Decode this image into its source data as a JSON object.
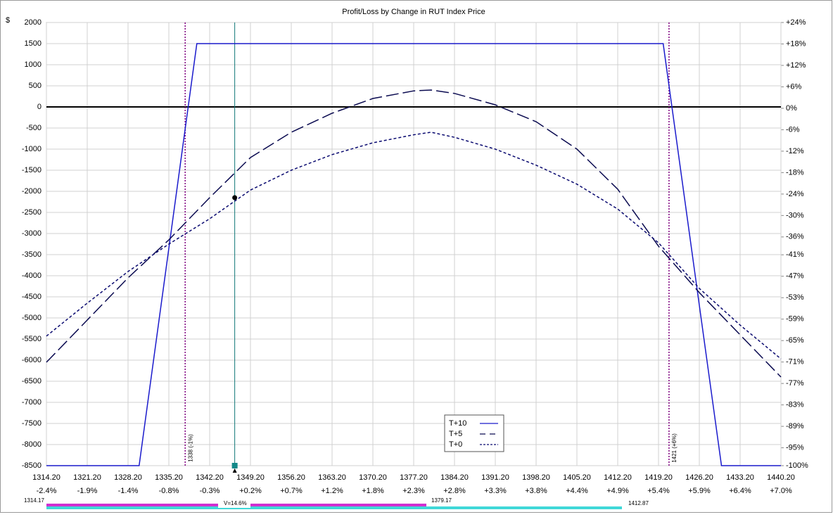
{
  "chart_data": {
    "type": "line",
    "title": "Profit/Loss by Change in RUT Index Price",
    "y_unit": "$",
    "xlim": [
      1314.2,
      1440.2
    ],
    "xticks": [
      {
        "value": 1314.2,
        "label": "1314.20"
      },
      {
        "value": 1321.2,
        "label": "1321.20"
      },
      {
        "value": 1328.2,
        "label": "1328.20"
      },
      {
        "value": 1335.2,
        "label": "1335.20"
      },
      {
        "value": 1342.2,
        "label": "1342.20"
      },
      {
        "value": 1349.2,
        "label": "1349.20"
      },
      {
        "value": 1356.2,
        "label": "1356.20"
      },
      {
        "value": 1363.2,
        "label": "1363.20"
      },
      {
        "value": 1370.2,
        "label": "1370.20"
      },
      {
        "value": 1377.2,
        "label": "1377.20"
      },
      {
        "value": 1384.2,
        "label": "1384.20"
      },
      {
        "value": 1391.2,
        "label": "1391.20"
      },
      {
        "value": 1398.2,
        "label": "1398.20"
      },
      {
        "value": 1405.2,
        "label": "1405.20"
      },
      {
        "value": 1412.2,
        "label": "1412.20"
      },
      {
        "value": 1419.2,
        "label": "1419.20"
      },
      {
        "value": 1426.2,
        "label": "1426.20"
      },
      {
        "value": 1433.2,
        "label": "1433.20"
      },
      {
        "value": 1440.2,
        "label": "1440.20"
      }
    ],
    "x_pct_labels": [
      "-2.4%",
      "-1.9%",
      "-1.4%",
      "-0.8%",
      "-0.3%",
      "+0.2%",
      "+0.7%",
      "+1.2%",
      "+1.8%",
      "+2.3%",
      "+2.8%",
      "+3.3%",
      "+3.8%",
      "+4.4%",
      "+4.9%",
      "+5.4%",
      "+5.9%",
      "+6.4%",
      "+7.0%"
    ],
    "ylim": [
      -8500,
      2000
    ],
    "yticks": [
      2000,
      1500,
      1000,
      500,
      0,
      -500,
      -1000,
      -1500,
      -2000,
      -2500,
      -3000,
      -3500,
      -4000,
      -4500,
      -5000,
      -5500,
      -6000,
      -6500,
      -7000,
      -7500,
      -8000,
      -8500
    ],
    "y2lim": [
      -100,
      24
    ],
    "y2ticks": [
      {
        "value": 24,
        "label": "+24%"
      },
      {
        "value": 18,
        "label": "+18%"
      },
      {
        "value": 12,
        "label": "+12%"
      },
      {
        "value": 6,
        "label": "+6%"
      },
      {
        "value": 0,
        "label": "0%"
      },
      {
        "value": -6,
        "label": "-6%"
      },
      {
        "value": -12,
        "label": "-12%"
      },
      {
        "value": -18,
        "label": "-18%"
      },
      {
        "value": -24,
        "label": "-24%"
      },
      {
        "value": -30,
        "label": "-30%"
      },
      {
        "value": -36,
        "label": "-36%"
      },
      {
        "value": -41,
        "label": "-41%"
      },
      {
        "value": -47,
        "label": "-47%"
      },
      {
        "value": -53,
        "label": "-53%"
      },
      {
        "value": -59,
        "label": "-59%"
      },
      {
        "value": -65,
        "label": "-65%"
      },
      {
        "value": -71,
        "label": "-71%"
      },
      {
        "value": -77,
        "label": "-77%"
      },
      {
        "value": -83,
        "label": "-83%"
      },
      {
        "value": -89,
        "label": "-89%"
      },
      {
        "value": -95,
        "label": "-95%"
      },
      {
        "value": -100,
        "label": "-100%"
      }
    ],
    "grid": true,
    "legend": "bottom-center",
    "series": [
      {
        "name": "T+10",
        "color": "#1a1acc",
        "dash": "solid",
        "x": [
          1314.2,
          1330.1,
          1340.0,
          1420.0,
          1430.0,
          1440.2
        ],
        "values": [
          -8500,
          -8500,
          1500,
          1500,
          -8500,
          -8500
        ]
      },
      {
        "name": "T+5",
        "color": "#0a0a50",
        "dash": "long",
        "x": [
          1314.2,
          1321.2,
          1328.2,
          1335.2,
          1342.2,
          1349.2,
          1356.2,
          1363.2,
          1370.2,
          1377.2,
          1380.2,
          1384.2,
          1391.2,
          1398.2,
          1405.2,
          1412.2,
          1419.2,
          1426.2,
          1433.2,
          1440.2
        ],
        "values": [
          -6050,
          -5050,
          -4050,
          -3150,
          -2150,
          -1200,
          -600,
          -150,
          200,
          380,
          400,
          320,
          50,
          -350,
          -1000,
          -1950,
          -3300,
          -4400,
          -5400,
          -6400
        ]
      },
      {
        "name": "T+0",
        "color": "#0a0a70",
        "dash": "short",
        "x": [
          1314.2,
          1321.2,
          1328.2,
          1335.2,
          1342.2,
          1349.2,
          1356.2,
          1363.2,
          1370.2,
          1377.2,
          1380.2,
          1384.2,
          1391.2,
          1398.2,
          1405.2,
          1412.2,
          1419.2,
          1426.2,
          1433.2,
          1440.2
        ],
        "values": [
          -5430,
          -4650,
          -3900,
          -3250,
          -2650,
          -1970,
          -1500,
          -1130,
          -850,
          -660,
          -600,
          -720,
          -1000,
          -1380,
          -1830,
          -2420,
          -3220,
          -4300,
          -5170,
          -5970
        ]
      }
    ],
    "vlines": [
      {
        "x": 1338,
        "label": "1338 (-1%)",
        "color": "#800080"
      },
      {
        "x": 1421,
        "label": "1421 (+6%)",
        "color": "#800080"
      }
    ],
    "current": {
      "x": 1346.5,
      "y": -2150,
      "color": "#117777"
    },
    "range_bar": {
      "low_label": "1314.17",
      "vol_label": "V=14.6%",
      "mid_label": "1379.17",
      "high_label": "1412.87"
    }
  }
}
